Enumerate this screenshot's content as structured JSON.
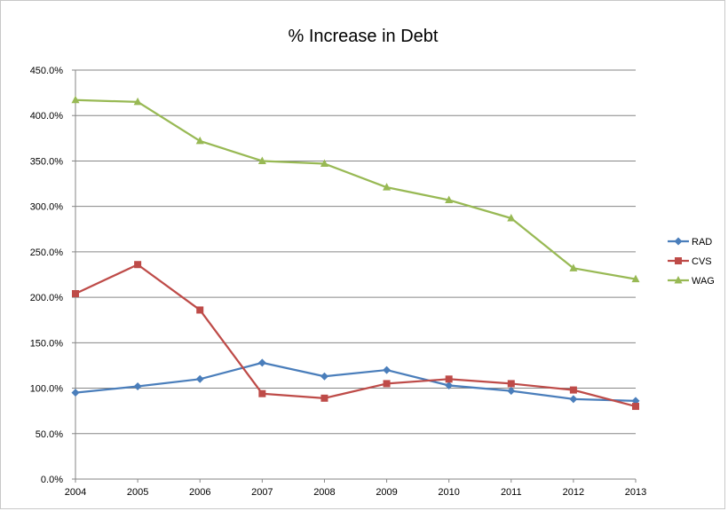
{
  "chart_data": {
    "type": "line",
    "title": "% Increase in Debt",
    "xlabel": "",
    "ylabel": "",
    "x": [
      "2004",
      "2005",
      "2006",
      "2007",
      "2008",
      "2009",
      "2010",
      "2011",
      "2012",
      "2013"
    ],
    "ylim": [
      0,
      450
    ],
    "yticks": [
      0,
      50,
      100,
      150,
      200,
      250,
      300,
      350,
      400,
      450
    ],
    "ytick_labels": [
      "0.0%",
      "50.0%",
      "100.0%",
      "150.0%",
      "200.0%",
      "250.0%",
      "300.0%",
      "350.0%",
      "400.0%",
      "450.0%"
    ],
    "grid": "horizontal",
    "legend_position": "right",
    "series": [
      {
        "name": "RAD",
        "color": "#4a7ebb",
        "marker": "diamond",
        "values": [
          95,
          102,
          110,
          128,
          113,
          120,
          103,
          97,
          88,
          86
        ]
      },
      {
        "name": "CVS",
        "color": "#be4b48",
        "marker": "square",
        "values": [
          204,
          236,
          186,
          94,
          89,
          105,
          110,
          105,
          98,
          80
        ]
      },
      {
        "name": "WAG",
        "color": "#98b954",
        "marker": "triangle",
        "values": [
          417,
          415,
          372,
          350,
          347,
          321,
          307,
          287,
          232,
          220
        ]
      }
    ]
  }
}
